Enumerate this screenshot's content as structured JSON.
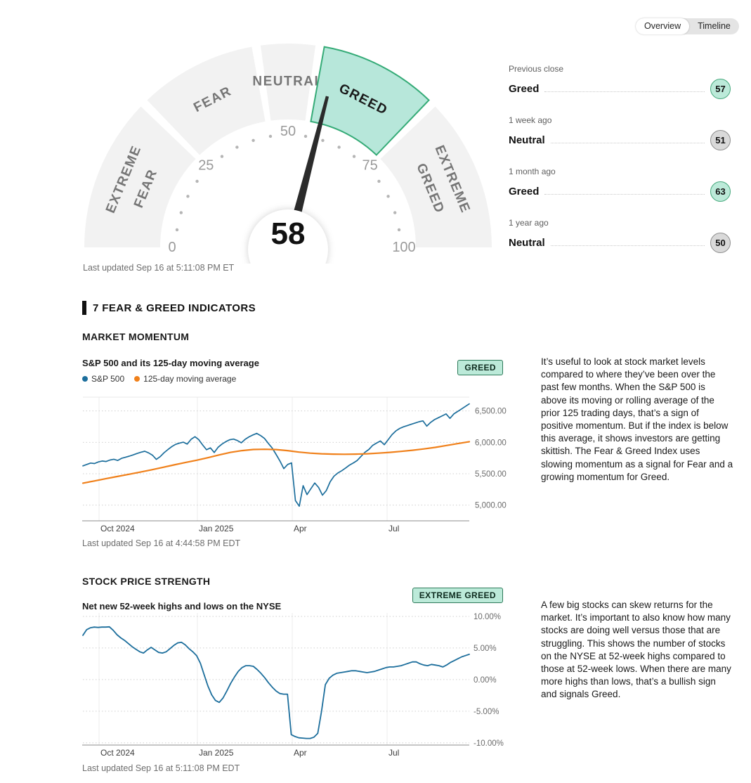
{
  "toggle": {
    "overview": "Overview",
    "timeline": "Timeline"
  },
  "gauge": {
    "value": 58,
    "last_updated": "Last updated Sep 16 at 5:11:08 PM ET",
    "segments": [
      {
        "lines": [
          "EXTREME",
          "FEAR"
        ],
        "from": 0,
        "to": 25,
        "highlight": false
      },
      {
        "lines": [
          "FEAR"
        ],
        "from": 25,
        "to": 45,
        "highlight": false
      },
      {
        "lines": [
          "NEUTRAL"
        ],
        "from": 45,
        "to": 55,
        "highlight": false
      },
      {
        "lines": [
          "GREED"
        ],
        "from": 55,
        "to": 75,
        "highlight": true
      },
      {
        "lines": [
          "EXTREME",
          "GREED"
        ],
        "from": 75,
        "to": 100,
        "highlight": false
      }
    ],
    "tick_labels": [
      0,
      25,
      50,
      75,
      100
    ],
    "colors": {
      "segment_fill": "#f2f2f2",
      "highlight_fill": "#b7e7da",
      "highlight_stroke": "#35ab77",
      "needle": "#2b2b2b",
      "label_gray": "#767676",
      "tick_gray": "#9a9a9a",
      "dot_gray": "#b5b5b5"
    }
  },
  "history": [
    {
      "period": "Previous close",
      "label": "Greed",
      "value": "57",
      "tone": "greed"
    },
    {
      "period": "1 week ago",
      "label": "Neutral",
      "value": "51",
      "tone": "neutral"
    },
    {
      "period": "1 month ago",
      "label": "Greed",
      "value": "63",
      "tone": "greed"
    },
    {
      "period": "1 year ago",
      "label": "Neutral",
      "value": "50",
      "tone": "neutral"
    }
  ],
  "section": {
    "title": "7 FEAR & GREED INDICATORS"
  },
  "indicators": [
    {
      "heading": "MARKET MOMENTUM",
      "badge": "GREED",
      "chart_title": "S&P 500 and its 125-day moving average",
      "legend": [
        {
          "label": "S&P 500",
          "color": "#1c6e9c"
        },
        {
          "label": "125-day moving average",
          "color": "#f0801a"
        }
      ],
      "last_updated": "Last updated Sep 16 at 4:44:58 PM EDT",
      "description": "It’s useful to look at stock market levels compared to where they’ve been over the past few months. When the S&P 500 is above its moving or rolling average of the prior 125 trading days, that’s a sign of positive momentum. But if the index is below this average, it shows investors are getting skittish. The Fear & Greed Index uses slowing momentum as a signal for Fear and a growing momentum for Greed."
    },
    {
      "heading": "STOCK PRICE STRENGTH",
      "badge": "EXTREME GREED",
      "chart_title": "Net new 52-week highs and lows on the NYSE",
      "last_updated": "Last updated Sep 16 at 5:11:08 PM EDT",
      "description": "A few big stocks can skew returns for the market. It’s important to also know how many stocks are doing well versus those that are struggling. This shows the number of stocks on the NYSE at 52-week highs compared to those at 52-week lows. When there are many more highs than lows, that’s a bullish sign and signals Greed."
    }
  ],
  "chart_data": [
    {
      "type": "line",
      "title": "S&P 500 and its 125-day moving average",
      "x_ticks": [
        "Oct 2024",
        "Jan 2025",
        "Apr",
        "Jul"
      ],
      "y_ticks": [
        {
          "label": "6,500.00",
          "value": 6500
        },
        {
          "label": "6,000.00",
          "value": 6000
        },
        {
          "label": "5,500.00",
          "value": 5500
        },
        {
          "label": "5,000.00",
          "value": 5000
        }
      ],
      "ylim": [
        4750,
        6720
      ],
      "grid": "horizontal-dotted-vertical-solid",
      "legend_position": "top-left",
      "series": [
        {
          "name": "S&P 500",
          "color": "#1c6e9c",
          "width": 1.7,
          "values": [
            5625,
            5648,
            5670,
            5662,
            5688,
            5703,
            5695,
            5718,
            5730,
            5712,
            5745,
            5762,
            5780,
            5800,
            5822,
            5842,
            5858,
            5832,
            5795,
            5728,
            5772,
            5835,
            5885,
            5932,
            5968,
            5988,
            6002,
            5972,
            6048,
            6090,
            6042,
            5958,
            5882,
            5912,
            5838,
            5922,
            5972,
            6012,
            6042,
            6052,
            6028,
            5992,
            6048,
            6088,
            6118,
            6142,
            6108,
            6062,
            5982,
            5908,
            5808,
            5702,
            5582,
            5648,
            5672,
            5074,
            4983,
            5310,
            5168,
            5262,
            5352,
            5282,
            5158,
            5232,
            5372,
            5462,
            5512,
            5548,
            5592,
            5638,
            5672,
            5712,
            5778,
            5842,
            5886,
            5952,
            5988,
            6022,
            5962,
            6042,
            6122,
            6182,
            6222,
            6248,
            6268,
            6288,
            6308,
            6328,
            6342,
            6258,
            6318,
            6362,
            6392,
            6422,
            6452,
            6382,
            6452,
            6492,
            6532,
            6572,
            6612
          ]
        },
        {
          "name": "125-day moving average",
          "color": "#f0801a",
          "width": 2.2,
          "values": [
            5350,
            5385,
            5420,
            5455,
            5490,
            5525,
            5560,
            5600,
            5640,
            5678,
            5715,
            5755,
            5800,
            5840,
            5868,
            5886,
            5890,
            5885,
            5868,
            5845,
            5828,
            5818,
            5812,
            5810,
            5812,
            5818,
            5828,
            5840,
            5856,
            5874,
            5895,
            5920,
            5950,
            5980,
            6010
          ]
        }
      ]
    },
    {
      "type": "line",
      "title": "Net new 52-week highs and lows on the NYSE",
      "x_ticks": [
        "Oct 2024",
        "Jan 2025",
        "Apr",
        "Jul"
      ],
      "y_ticks": [
        {
          "label": "10.00%",
          "value": 10
        },
        {
          "label": "5.00%",
          "value": 5
        },
        {
          "label": "0.00%",
          "value": 0
        },
        {
          "label": "-5.00%",
          "value": -5
        },
        {
          "label": "-10.00%",
          "value": -10
        }
      ],
      "ylim": [
        -10.35,
        10.55
      ],
      "grid": "horizontal-dotted-vertical-solid",
      "series": [
        {
          "name": "Net new 52-week highs and lows",
          "color": "#1c6e9c",
          "width": 1.8,
          "values": [
            7.0,
            7.9,
            8.2,
            8.3,
            8.25,
            8.3,
            8.3,
            8.35,
            7.8,
            7.1,
            6.6,
            6.2,
            5.7,
            5.2,
            4.8,
            4.4,
            4.2,
            4.7,
            5.1,
            4.7,
            4.3,
            4.2,
            4.4,
            4.9,
            5.4,
            5.8,
            5.9,
            5.5,
            4.9,
            4.4,
            3.8,
            2.6,
            0.8,
            -1.0,
            -2.4,
            -3.3,
            -3.6,
            -2.9,
            -1.8,
            -0.6,
            0.4,
            1.3,
            1.9,
            2.2,
            2.2,
            2.1,
            1.6,
            1.0,
            0.3,
            -0.5,
            -1.2,
            -1.8,
            -2.2,
            -2.3,
            -2.3,
            -8.7,
            -9.0,
            -9.2,
            -9.25,
            -9.3,
            -9.3,
            -9.1,
            -8.5,
            -5.0,
            -0.8,
            0.2,
            0.7,
            1.0,
            1.1,
            1.2,
            1.3,
            1.4,
            1.4,
            1.3,
            1.2,
            1.1,
            1.2,
            1.3,
            1.5,
            1.7,
            1.9,
            2.0,
            2.0,
            2.1,
            2.2,
            2.4,
            2.6,
            2.8,
            2.8,
            2.5,
            2.3,
            2.2,
            2.4,
            2.3,
            2.2,
            2.0,
            2.3,
            2.7,
            3.0,
            3.3,
            3.6,
            3.8,
            4.0
          ]
        }
      ]
    }
  ]
}
